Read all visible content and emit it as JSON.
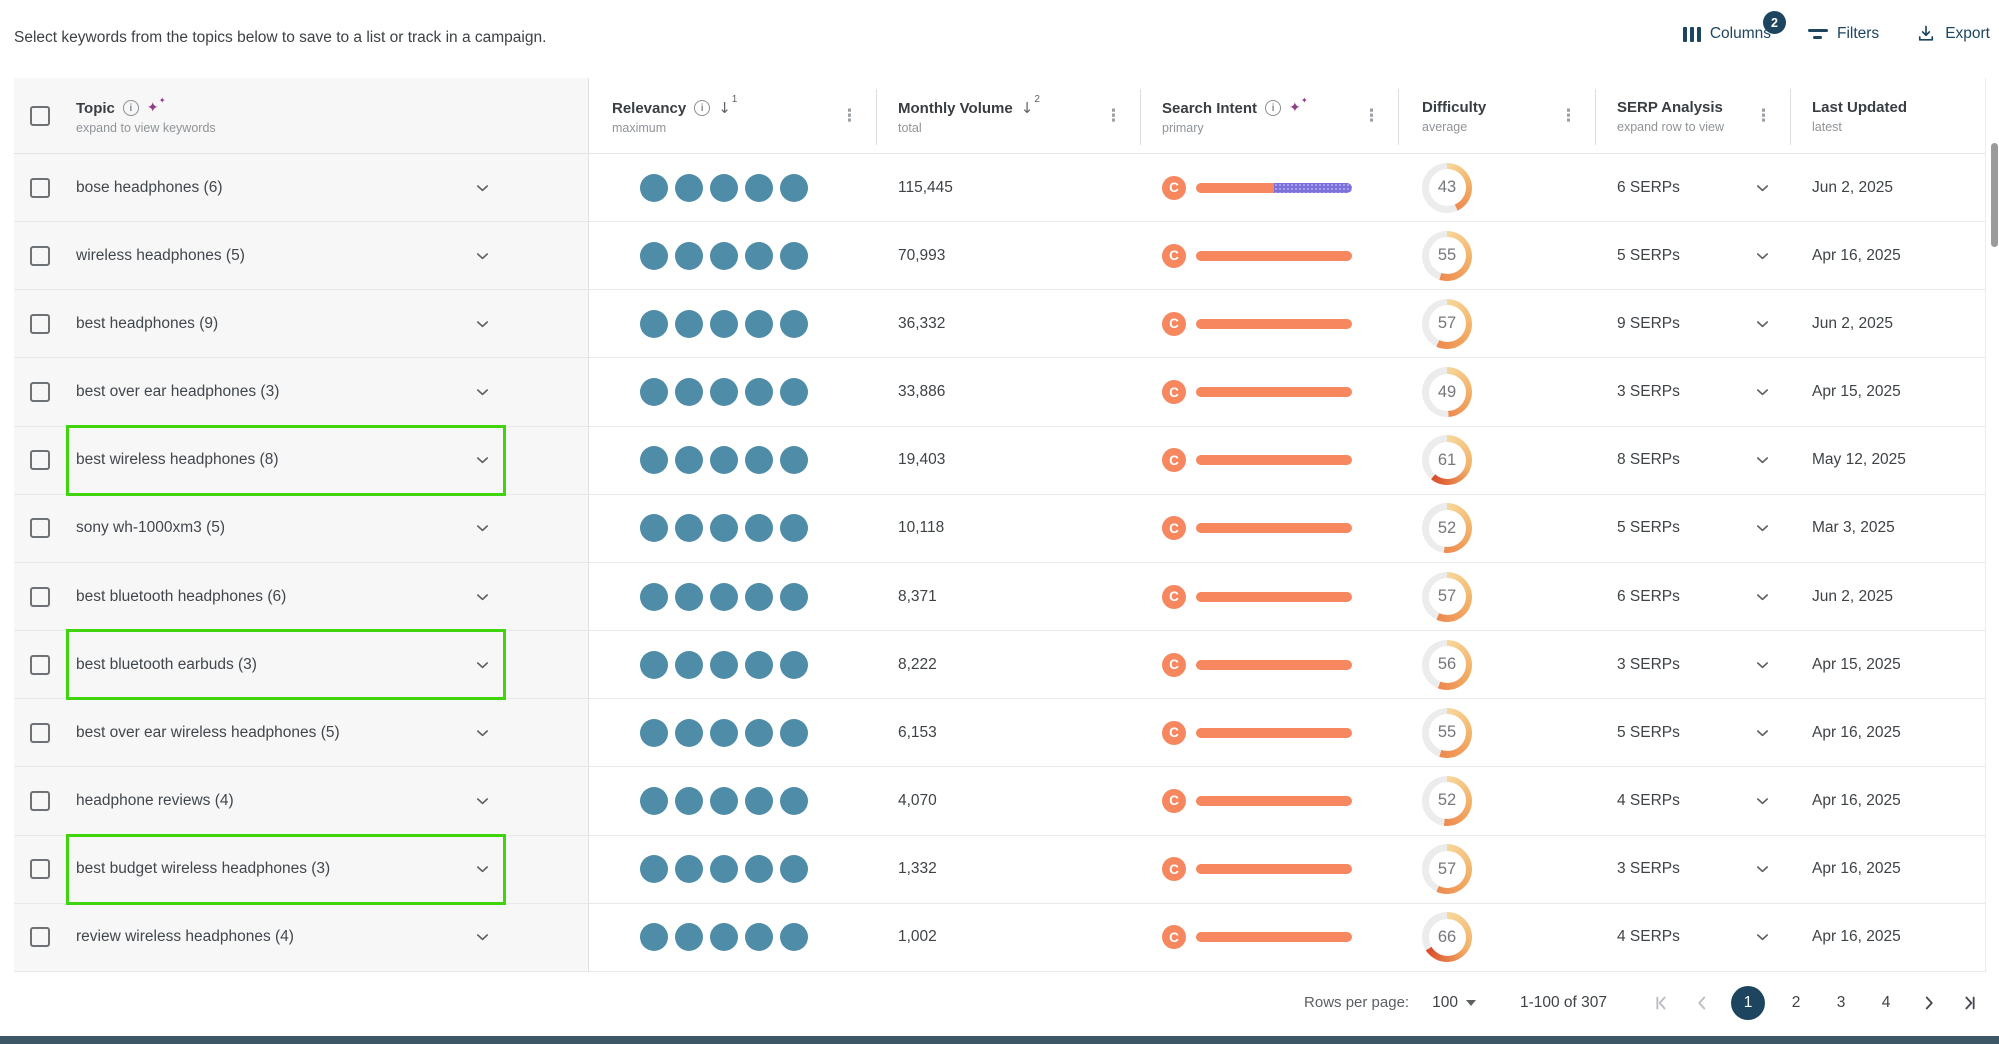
{
  "intro": "Select keywords from the topics below to save to a list or track in a campaign.",
  "toolbar": {
    "columns_label": "Columns",
    "columns_badge": "2",
    "filters_label": "Filters",
    "export_label": "Export"
  },
  "table": {
    "headers": {
      "topic": {
        "label": "Topic",
        "sub": "expand to view keywords"
      },
      "relevancy": {
        "label": "Relevancy",
        "sub": "maximum",
        "sort_rank": "1"
      },
      "monthly_volume": {
        "label": "Monthly Volume",
        "sub": "total",
        "sort_rank": "2"
      },
      "search_intent": {
        "label": "Search Intent",
        "sub": "primary"
      },
      "difficulty": {
        "label": "Difficulty",
        "sub": "average"
      },
      "serp_analysis": {
        "label": "SERP Analysis",
        "sub": "expand row to view"
      },
      "last_updated": {
        "label": "Last Updated",
        "sub": "latest"
      }
    },
    "rows": [
      {
        "topic": "bose headphones (6)",
        "relevancy": 5,
        "volume": "115,445",
        "intent": {
          "label": "C",
          "primary_pct": 50
        },
        "difficulty": 43,
        "serps": "6 SERPs",
        "updated": "Jun 2, 2025",
        "highlighted": false
      },
      {
        "topic": "wireless headphones (5)",
        "relevancy": 5,
        "volume": "70,993",
        "intent": {
          "label": "C",
          "primary_pct": 100
        },
        "difficulty": 55,
        "serps": "5 SERPs",
        "updated": "Apr 16, 2025",
        "highlighted": false
      },
      {
        "topic": "best headphones (9)",
        "relevancy": 5,
        "volume": "36,332",
        "intent": {
          "label": "C",
          "primary_pct": 100
        },
        "difficulty": 57,
        "serps": "9 SERPs",
        "updated": "Jun 2, 2025",
        "highlighted": false
      },
      {
        "topic": "best over ear headphones (3)",
        "relevancy": 5,
        "volume": "33,886",
        "intent": {
          "label": "C",
          "primary_pct": 100
        },
        "difficulty": 49,
        "serps": "3 SERPs",
        "updated": "Apr 15, 2025",
        "highlighted": false
      },
      {
        "topic": "best wireless headphones (8)",
        "relevancy": 5,
        "volume": "19,403",
        "intent": {
          "label": "C",
          "primary_pct": 100
        },
        "difficulty": 61,
        "serps": "8 SERPs",
        "updated": "May 12, 2025",
        "highlighted": true
      },
      {
        "topic": "sony wh-1000xm3 (5)",
        "relevancy": 5,
        "volume": "10,118",
        "intent": {
          "label": "C",
          "primary_pct": 100
        },
        "difficulty": 52,
        "serps": "5 SERPs",
        "updated": "Mar 3, 2025",
        "highlighted": false
      },
      {
        "topic": "best bluetooth headphones (6)",
        "relevancy": 5,
        "volume": "8,371",
        "intent": {
          "label": "C",
          "primary_pct": 100
        },
        "difficulty": 57,
        "serps": "6 SERPs",
        "updated": "Jun 2, 2025",
        "highlighted": false
      },
      {
        "topic": "best bluetooth earbuds (3)",
        "relevancy": 5,
        "volume": "8,222",
        "intent": {
          "label": "C",
          "primary_pct": 100
        },
        "difficulty": 56,
        "serps": "3 SERPs",
        "updated": "Apr 15, 2025",
        "highlighted": true
      },
      {
        "topic": "best over ear wireless headphones (5)",
        "relevancy": 5,
        "volume": "6,153",
        "intent": {
          "label": "C",
          "primary_pct": 100
        },
        "difficulty": 55,
        "serps": "5 SERPs",
        "updated": "Apr 16, 2025",
        "highlighted": false
      },
      {
        "topic": "headphone reviews (4)",
        "relevancy": 5,
        "volume": "4,070",
        "intent": {
          "label": "C",
          "primary_pct": 100
        },
        "difficulty": 52,
        "serps": "4 SERPs",
        "updated": "Apr 16, 2025",
        "highlighted": false
      },
      {
        "topic": "best budget wireless headphones (3)",
        "relevancy": 5,
        "volume": "1,332",
        "intent": {
          "label": "C",
          "primary_pct": 100
        },
        "difficulty": 57,
        "serps": "3 SERPs",
        "updated": "Apr 16, 2025",
        "highlighted": true
      },
      {
        "topic": "review wireless headphones (4)",
        "relevancy": 5,
        "volume": "1,002",
        "intent": {
          "label": "C",
          "primary_pct": 100
        },
        "difficulty": 66,
        "serps": "4 SERPs",
        "updated": "Apr 16, 2025",
        "highlighted": false
      }
    ]
  },
  "pagination": {
    "rows_per_page_label": "Rows per page:",
    "rows_per_page_value": "100",
    "range_label": "1-100 of 307",
    "pages": [
      "1",
      "2",
      "3",
      "4"
    ],
    "active_page": "1"
  },
  "colors": {
    "accent_navy": "#1d4560",
    "relevancy_dot": "#4e8ca8",
    "intent_primary_orange": "#f6875f",
    "intent_secondary_purple": "#7b70da",
    "highlight_green": "#3fd40b",
    "sparkle_purple": "#8e3d87",
    "ring_start": "#f7d89b",
    "ring_normal_end": "#ee8a4f",
    "ring_high_end": "#d94a28",
    "ring_track": "#ececec"
  }
}
